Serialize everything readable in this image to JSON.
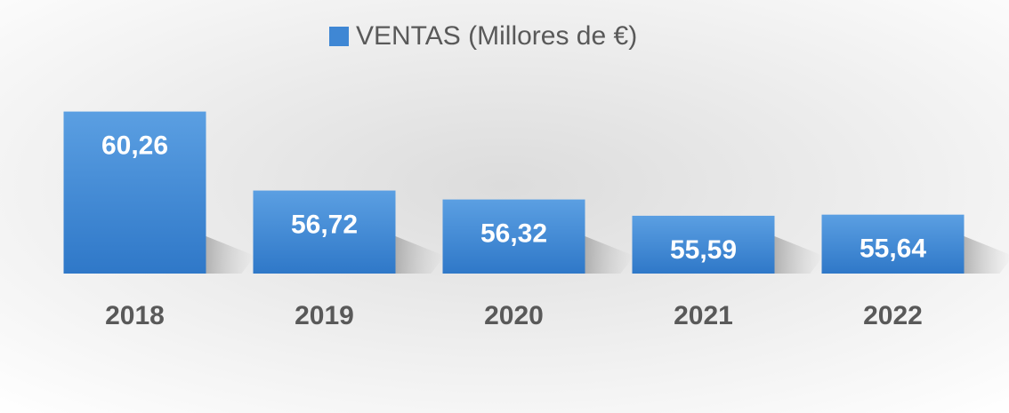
{
  "chart_data": {
    "type": "bar",
    "categories": [
      "2018",
      "2019",
      "2020",
      "2021",
      "2022"
    ],
    "series": [
      {
        "name": "VENTAS (Millores de €)",
        "color": "#3f87d4",
        "values": [
          60.26,
          56.72,
          56.32,
          55.59,
          55.64
        ],
        "value_labels": [
          "60,26",
          "56,72",
          "56,32",
          "55,59",
          "55,64"
        ]
      }
    ],
    "ylim": [
      53,
      61
    ],
    "legend": "top"
  }
}
